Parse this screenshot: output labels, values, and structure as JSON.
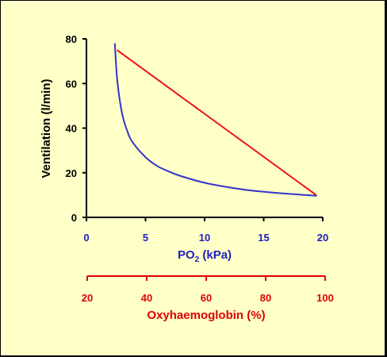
{
  "colors": {
    "background": "#FFFFC8",
    "border": "#000000",
    "ventilation_axis": "#000000",
    "po2_axis": "#2020C0",
    "oxyhaemoglobin_axis": "#E00000",
    "po2_curve": "#3333CC",
    "oxyhaemoglobin_line": "#EE1111"
  },
  "chart_data": {
    "type": "line",
    "title": "",
    "ylabel": "Ventilation (l/min)",
    "ylim": [
      0,
      80
    ],
    "yticks": [
      "0",
      "20",
      "40",
      "60",
      "80"
    ],
    "x_axes": [
      {
        "id": "po2",
        "label_prefix": "PO",
        "label_subscript": "2",
        "label_suffix": " (kPa)",
        "lim": [
          0,
          20
        ],
        "ticks": [
          "0",
          "5",
          "10",
          "15",
          "20"
        ]
      },
      {
        "id": "oxyhaemoglobin",
        "label": "Oxyhaemoglobin (%)",
        "lim": [
          20,
          100
        ],
        "ticks": [
          "20",
          "40",
          "60",
          "80",
          "100"
        ]
      }
    ],
    "grid": false,
    "legend": "none",
    "series": [
      {
        "x_axis": "po2",
        "color": "#3333CC",
        "x": [
          2.4,
          2.6,
          3,
          3.5,
          4,
          5,
          6,
          7,
          8,
          10,
          12,
          14,
          16,
          18,
          19.5
        ],
        "y": [
          78,
          62,
          47,
          38,
          33,
          27,
          23,
          20.5,
          18.5,
          15.5,
          13.5,
          12,
          11,
          10.2,
          9.7
        ]
      },
      {
        "x_axis": "oxyhaemoglobin",
        "color": "#EE1111",
        "x": [
          30,
          97
        ],
        "y": [
          75,
          10
        ]
      }
    ]
  }
}
